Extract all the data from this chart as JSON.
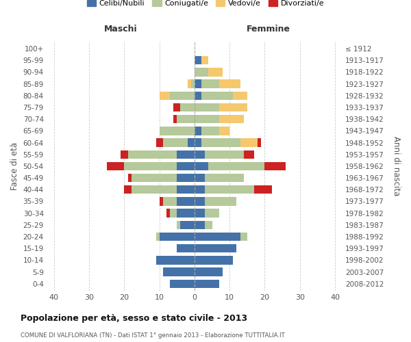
{
  "age_groups": [
    "0-4",
    "5-9",
    "10-14",
    "15-19",
    "20-24",
    "25-29",
    "30-34",
    "35-39",
    "40-44",
    "45-49",
    "50-54",
    "55-59",
    "60-64",
    "65-69",
    "70-74",
    "75-79",
    "80-84",
    "85-89",
    "90-94",
    "95-99",
    "100+"
  ],
  "birth_years": [
    "2008-2012",
    "2003-2007",
    "1998-2002",
    "1993-1997",
    "1988-1992",
    "1983-1987",
    "1978-1982",
    "1973-1977",
    "1968-1972",
    "1963-1967",
    "1958-1962",
    "1953-1957",
    "1948-1952",
    "1943-1947",
    "1938-1942",
    "1933-1937",
    "1928-1932",
    "1923-1927",
    "1918-1922",
    "1913-1917",
    "≤ 1912"
  ],
  "colors": {
    "celibi": "#4472a8",
    "coniugati": "#b5c99a",
    "vedovi": "#f5c86e",
    "divorziati": "#cc2222"
  },
  "males": {
    "celibi": [
      7,
      9,
      11,
      5,
      10,
      4,
      5,
      5,
      5,
      5,
      5,
      5,
      2,
      0,
      0,
      0,
      0,
      0,
      0,
      0,
      0
    ],
    "coniugati": [
      0,
      0,
      0,
      0,
      1,
      1,
      2,
      4,
      13,
      13,
      15,
      14,
      7,
      10,
      5,
      4,
      7,
      1,
      0,
      0,
      0
    ],
    "vedovi": [
      0,
      0,
      0,
      0,
      0,
      0,
      0,
      0,
      0,
      0,
      0,
      0,
      0,
      0,
      0,
      0,
      3,
      1,
      0,
      0,
      0
    ],
    "divorziati": [
      0,
      0,
      0,
      0,
      0,
      0,
      1,
      1,
      2,
      1,
      5,
      2,
      2,
      0,
      1,
      2,
      0,
      0,
      0,
      0,
      0
    ]
  },
  "females": {
    "celibi": [
      7,
      8,
      11,
      12,
      13,
      3,
      3,
      3,
      3,
      3,
      4,
      3,
      2,
      2,
      0,
      0,
      2,
      2,
      0,
      2,
      0
    ],
    "coniugati": [
      0,
      0,
      0,
      0,
      2,
      2,
      4,
      9,
      14,
      11,
      16,
      11,
      11,
      5,
      7,
      7,
      9,
      5,
      4,
      0,
      0
    ],
    "vedovi": [
      0,
      0,
      0,
      0,
      0,
      0,
      0,
      0,
      0,
      0,
      0,
      0,
      5,
      3,
      7,
      8,
      4,
      6,
      4,
      2,
      0
    ],
    "divorziati": [
      0,
      0,
      0,
      0,
      0,
      0,
      0,
      0,
      5,
      0,
      6,
      3,
      1,
      0,
      0,
      0,
      0,
      0,
      0,
      0,
      0
    ]
  },
  "xlim": 42,
  "title": "Popolazione per età, sesso e stato civile - 2013",
  "subtitle": "COMUNE DI VALFLORIANA (TN) - Dati ISTAT 1° gennaio 2013 - Elaborazione TUTTITALIA.IT",
  "ylabel_left": "Fasce di età",
  "ylabel_right": "Anni di nascita",
  "xlabel_left": "Maschi",
  "xlabel_right": "Femmine",
  "legend_labels": [
    "Celibi/Nubili",
    "Coniugati/e",
    "Vedovi/e",
    "Divorziati/e"
  ],
  "background_color": "#ffffff",
  "grid_color": "#cccccc"
}
